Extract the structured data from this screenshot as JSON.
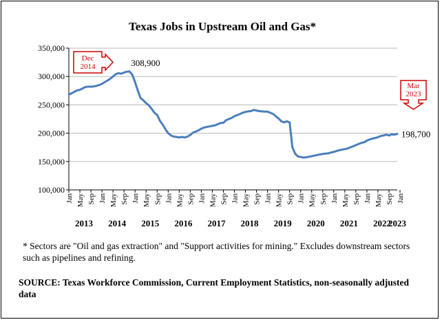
{
  "chart_data": {
    "type": "line",
    "title": "Texas Jobs in Upstream Oil and Gas*",
    "xlabel": "",
    "ylabel": "",
    "ylim": [
      100000,
      350000
    ],
    "yticks": [
      "100,000",
      "150,000",
      "200,000",
      "250,000",
      "300,000",
      "350,000"
    ],
    "xticks": [
      "Jan",
      "May",
      "Sep",
      "Jan",
      "May",
      "Sep",
      "Jan",
      "May",
      "Sep",
      "Jan",
      "May",
      "Sep",
      "Jan",
      "May",
      "Sep",
      "Jan",
      "May",
      "Sep",
      "Jan",
      "May",
      "Sep",
      "Jan",
      "May",
      "Sep",
      "Jan",
      "May",
      "Sep",
      "Jan",
      "May",
      "Sep",
      "Jan"
    ],
    "years": [
      "2013",
      "2014",
      "2015",
      "2016",
      "2017",
      "2018",
      "2019",
      "2020",
      "2021",
      "2022",
      "2023"
    ],
    "x_start": "Jan 2013",
    "x_end": "Mar 2023",
    "grid": "horizontal",
    "legend": "none",
    "line_color": "#4a7ebb",
    "series": [
      {
        "values": [
          268000,
          270500,
          273000,
          275500,
          276500,
          279000,
          281500,
          282000,
          282000,
          282500,
          283500,
          285000,
          287000,
          290000,
          293000,
          296000,
          300000,
          304000,
          306000,
          305000,
          307000,
          308500,
          308900,
          303000,
          290000,
          275000,
          262000,
          258000,
          253000,
          249000,
          243000,
          236000,
          232000,
          222000,
          215000,
          207000,
          200000,
          196000,
          194000,
          193500,
          192500,
          193500,
          192500,
          194000,
          197000,
          201000,
          203000,
          205000,
          208000,
          210000,
          211000,
          212000,
          213000,
          214000,
          216000,
          218000,
          218500,
          223000,
          225000,
          227000,
          230000,
          232000,
          234000,
          236000,
          237500,
          238500,
          239000,
          241000,
          240000,
          239000,
          238500,
          238000,
          238000,
          236000,
          234000,
          230000,
          226000,
          221000,
          219000,
          221000,
          219000,
          175000,
          164000,
          159000,
          158000,
          157000,
          157500,
          158500,
          159500,
          160500,
          161500,
          162500,
          163500,
          164000,
          164500,
          166000,
          167000,
          168500,
          170000,
          171000,
          172000,
          173000,
          175000,
          177000,
          179000,
          181000,
          183000,
          184000,
          187000,
          189000,
          190500,
          191500,
          193000,
          195000,
          196000,
          197500,
          196000,
          198000,
          197500,
          198700
        ]
      }
    ],
    "annotations": [
      {
        "label": "308,900",
        "callout": "Dec\n2014",
        "at": "Dec 2014"
      },
      {
        "label": "198,700",
        "callout": "Mar\n2023",
        "at": "Mar 2023"
      }
    ],
    "callout_color": "#cc0000"
  },
  "footnote": "* Sectors are \"Oil and gas extraction\" and \"Support activities for mining.\"  Excludes downstream sectors such as pipelines and refining.",
  "source": "SOURCE: Texas Workforce Commission, Current Employment Statistics, non-seasonally adjusted data"
}
